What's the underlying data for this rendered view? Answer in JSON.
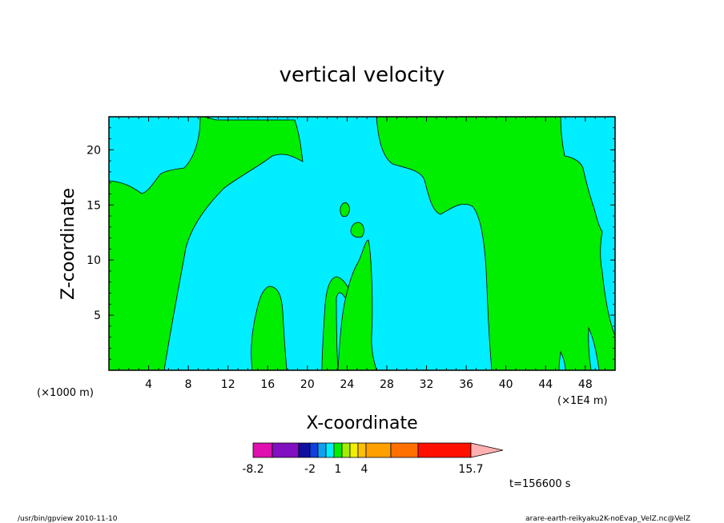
{
  "chart_data": {
    "type": "heatmap",
    "title": "vertical velocity",
    "xlabel": "X-coordinate",
    "ylabel": "Z-coordinate",
    "x_unit_left": "(×1000 m)",
    "x_unit_right": "(×1E4 m)",
    "xlim": [
      0,
      51
    ],
    "ylim": [
      0,
      23
    ],
    "x_ticks": [
      "4",
      "8",
      "12",
      "16",
      "20",
      "24",
      "28",
      "32",
      "36",
      "40",
      "44",
      "48"
    ],
    "y_ticks": [
      "5",
      "10",
      "15",
      "20"
    ],
    "time_label": "t=156600 s",
    "colorbar": {
      "labels": [
        "-8.2",
        "-2",
        "1",
        "4",
        "15.7"
      ],
      "colors": [
        "#e010b0",
        "#8010c0",
        "#1010a0",
        "#1040e0",
        "#10a0f0",
        "#00eeff",
        "#00ee00",
        "#a0ee00",
        "#f0f000",
        "#ffc000",
        "#ffa000",
        "#ff7000",
        "#ff1000",
        "#ff7f7f",
        "#ffb0b0"
      ]
    },
    "regions": {
      "background_color": "#00ee00",
      "contour_color": "#00eeff"
    }
  },
  "footer": {
    "left": "/usr/bin/gpview  2010-11-10",
    "right": "arare-earth-reikyaku2K-noEvap_VelZ.nc@VelZ"
  }
}
